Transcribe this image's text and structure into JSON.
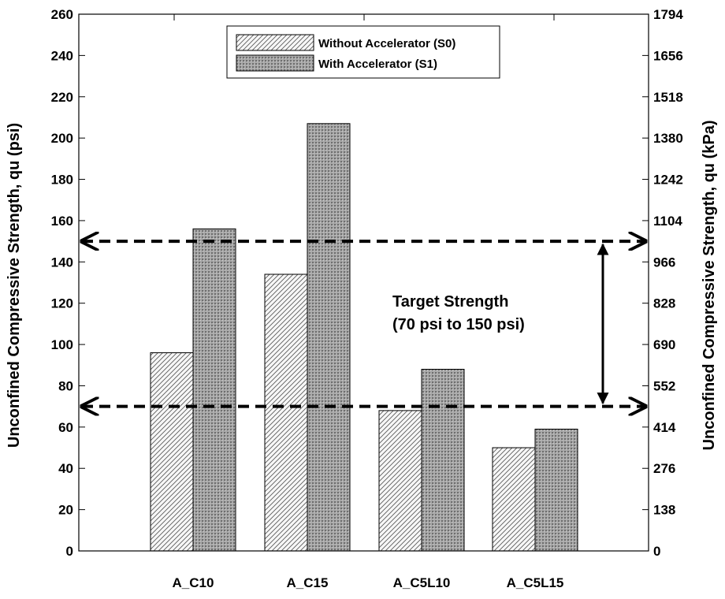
{
  "chart_data": {
    "type": "bar",
    "categories": [
      "A_C10",
      "A_C15",
      "A_C5L10",
      "A_C5L15"
    ],
    "series": [
      {
        "name": "Without Accelerator (S0)",
        "values": [
          96,
          134,
          68,
          50
        ]
      },
      {
        "name": "With Accelerator (S1)",
        "values": [
          156,
          207,
          88,
          59
        ]
      }
    ],
    "ylabel": "Unconfined Compressive Strength, qu (psi)",
    "ylabel_right": "Unconfined Compressive Strength, qu (kPa)",
    "ylim": [
      0,
      260
    ],
    "yticks": [
      "0",
      "20",
      "40",
      "60",
      "80",
      "100",
      "120",
      "140",
      "160",
      "180",
      "200",
      "220",
      "240",
      "260"
    ],
    "yticks_right": [
      "0",
      "138",
      "276",
      "414",
      "552",
      "690",
      "828",
      "966",
      "1104",
      "1242",
      "1380",
      "1518",
      "1656",
      "1794"
    ],
    "reference_lines": [
      70,
      150
    ],
    "annotation": [
      "Target Strength",
      "(70 psi to 150 psi)"
    ],
    "legend_position": "top-center",
    "grid": false,
    "colors": {
      "s0_fill": "#f2f2f2",
      "s1_fill": "#9a9a9a",
      "line": "#000000"
    }
  }
}
